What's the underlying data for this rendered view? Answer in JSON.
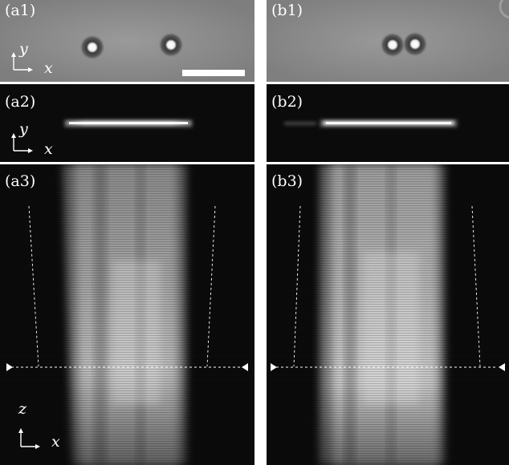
{
  "panels": {
    "a1": {
      "label": "(a1)",
      "axis_v": "y",
      "axis_h": "x"
    },
    "a2": {
      "label": "(a2)",
      "axis_v": "y",
      "axis_h": "x"
    },
    "a3": {
      "label": "(a3)",
      "axis_v": "z",
      "axis_h": "x"
    },
    "b1": {
      "label": "(b1)"
    },
    "b2": {
      "label": "(b2)"
    },
    "b3": {
      "label": "(b3)"
    }
  },
  "colors": {
    "brightfield_bg": "#8e8e8e",
    "dark_bg": "#0b0b0b",
    "beam_glow": "#e8e8e8",
    "scale_bar": "#ffffff",
    "divider": "#ffffff"
  }
}
